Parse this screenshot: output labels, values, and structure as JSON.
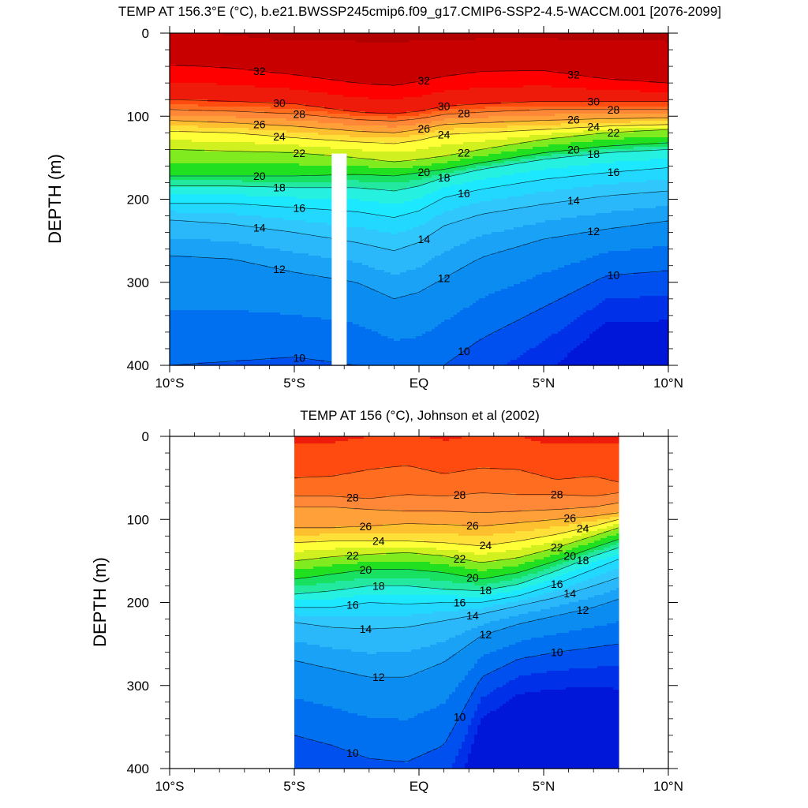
{
  "chart_data": [
    {
      "type": "heatmap",
      "subtype": "filled-contour",
      "title": "TEMP AT 156.3°E (°C), b.e21.BWSSP245cmip6.f09_g17.CMIP6-SSP2-4.5-WACCM.001 [2076-2099]",
      "ylabel": "DEPTH (m)",
      "xlabel": "",
      "xlim": [
        -10,
        10
      ],
      "ylim": [
        0,
        400
      ],
      "y_inverted": true,
      "x_ticks": [
        "10°S",
        "5°S",
        "EQ",
        "5°N",
        "10°N"
      ],
      "y_ticks": [
        "0",
        "100",
        "200",
        "300",
        "400"
      ],
      "contour_interval": 1,
      "latitude_points": [
        -10,
        -7.5,
        -5,
        -2.5,
        -1,
        0,
        1,
        2.5,
        5,
        7.5,
        10
      ],
      "isotherm_depths_m": {
        "32": [
          38,
          42,
          50,
          60,
          63,
          58,
          52,
          46,
          45,
          55,
          60
        ],
        "30": [
          80,
          82,
          85,
          95,
          97,
          94,
          88,
          85,
          82,
          82,
          82
        ],
        "28": [
          92,
          94,
          97,
          104,
          106,
          103,
          98,
          95,
          92,
          92,
          92
        ],
        "26": [
          105,
          108,
          112,
          118,
          120,
          116,
          110,
          108,
          105,
          103,
          102
        ],
        "24": [
          118,
          120,
          126,
          131,
          133,
          129,
          122,
          120,
          116,
          112,
          110
        ],
        "22": [
          140,
          142,
          144,
          150,
          155,
          152,
          148,
          140,
          128,
          120,
          116
        ],
        "20": [
          172,
          172,
          172,
          170,
          172,
          168,
          164,
          156,
          144,
          136,
          132
        ],
        "18": [
          184,
          184,
          186,
          186,
          190,
          184,
          174,
          164,
          152,
          144,
          140
        ],
        "16": [
          205,
          205,
          210,
          215,
          222,
          214,
          198,
          188,
          176,
          168,
          162
        ],
        "14": [
          225,
          230,
          240,
          252,
          262,
          252,
          232,
          218,
          206,
          196,
          190
        ],
        "12": [
          268,
          272,
          288,
          300,
          320,
          312,
          295,
          270,
          248,
          236,
          226
        ],
        "10": [
          400,
          395,
          390,
          400,
          420,
          420,
          400,
          368,
          330,
          292,
          286
        ]
      },
      "contour_labels": [
        "32",
        "30",
        "28",
        "26",
        "24",
        "22",
        "20",
        "18",
        "16",
        "14",
        "12",
        "10"
      ],
      "missing_data_band_lat": [
        -3.5,
        -2.9
      ],
      "missing_data_band_depth": [
        145,
        400
      ]
    },
    {
      "type": "heatmap",
      "subtype": "filled-contour",
      "title": "TEMP AT 156 (°C), Johnson et al (2002)",
      "ylabel": "DEPTH (m)",
      "xlabel": "",
      "xlim": [
        -10,
        10
      ],
      "ylim": [
        0,
        400
      ],
      "y_inverted": true,
      "x_ticks": [
        "10°S",
        "5°S",
        "EQ",
        "5°N",
        "10°N"
      ],
      "y_ticks": [
        "0",
        "100",
        "200",
        "300",
        "400"
      ],
      "contour_interval": 1,
      "data_lat_range": [
        -5,
        8
      ],
      "latitude_points": [
        -5,
        -3.5,
        -2,
        -0.5,
        1,
        2.5,
        4,
        5.5,
        7,
        8
      ],
      "isotherm_depths_m": {
        "29": [
          50,
          48,
          40,
          35,
          45,
          38,
          40,
          52,
          48,
          55
        ],
        "28": [
          72,
          72,
          75,
          70,
          72,
          68,
          70,
          70,
          72,
          68
        ],
        "27": [
          85,
          85,
          88,
          90,
          90,
          92,
          90,
          88,
          85,
          80
        ],
        "26": [
          110,
          110,
          108,
          105,
          106,
          108,
          104,
          100,
          96,
          92
        ],
        "24": [
          128,
          126,
          126,
          126,
          128,
          132,
          126,
          118,
          108,
          100
        ],
        "22": [
          150,
          145,
          142,
          140,
          144,
          152,
          146,
          134,
          120,
          110
        ],
        "20": [
          172,
          166,
          160,
          160,
          164,
          172,
          164,
          150,
          134,
          124
        ],
        "18": [
          190,
          186,
          180,
          180,
          184,
          186,
          178,
          162,
          144,
          134
        ],
        "16": [
          206,
          206,
          200,
          202,
          200,
          200,
          192,
          178,
          160,
          148
        ],
        "14": [
          224,
          230,
          232,
          230,
          222,
          214,
          204,
          194,
          180,
          170
        ],
        "12": [
          270,
          280,
          290,
          290,
          272,
          240,
          226,
          216,
          206,
          196
        ],
        "10": [
          360,
          372,
          388,
          392,
          372,
          290,
          268,
          260,
          254,
          250
        ]
      },
      "contour_labels": [
        "28",
        "26",
        "24",
        "22",
        "20",
        "18",
        "16",
        "14",
        "12",
        "10"
      ]
    }
  ],
  "colorscale": {
    "levels": [
      8,
      9,
      10,
      11,
      12,
      13,
      14,
      15,
      16,
      17,
      18,
      19,
      20,
      21,
      22,
      23,
      24,
      25,
      26,
      27,
      28,
      29,
      30,
      31,
      32,
      33
    ],
    "colors": [
      "#0016d8",
      "#0030e8",
      "#0050f0",
      "#0070f0",
      "#0a8cf0",
      "#1aa2f6",
      "#2ab8fa",
      "#30c8fc",
      "#22d8ff",
      "#1ce8ff",
      "#26f0e0",
      "#22e8a0",
      "#18e060",
      "#20e020",
      "#80ec20",
      "#d0f020",
      "#ffff38",
      "#ffe038",
      "#ffc030",
      "#ffa038",
      "#ff8838",
      "#ff6e20",
      "#ff4a10",
      "#ee1a0a",
      "#ff0000",
      "#c80000",
      "#b00000"
    ]
  }
}
